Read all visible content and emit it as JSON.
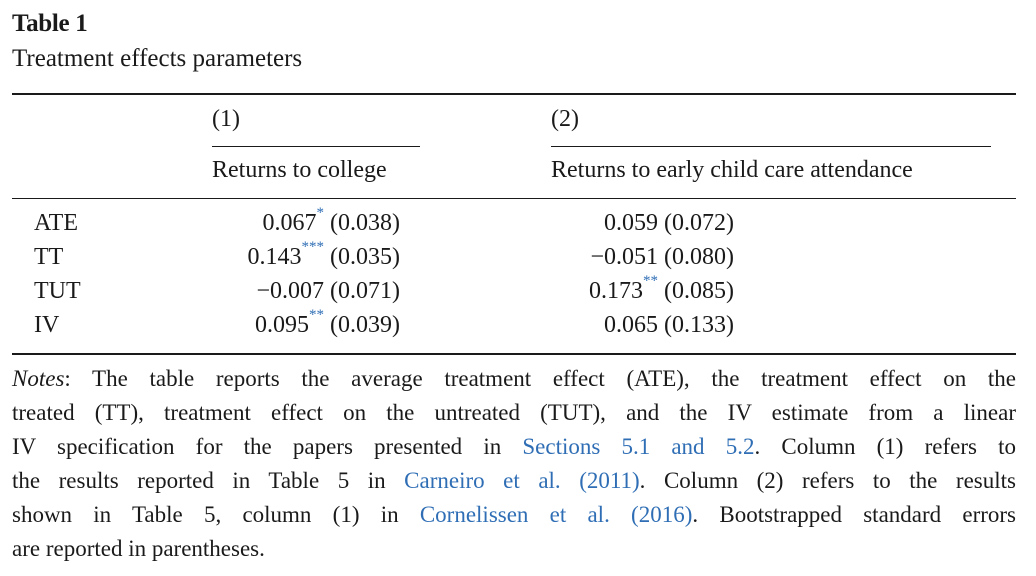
{
  "table": {
    "title": "Table 1",
    "subtitle": "Treatment effects parameters",
    "columns": [
      {
        "number": "(1)",
        "label": "Returns to college"
      },
      {
        "number": "(2)",
        "label": "Returns to early child care attendance"
      }
    ],
    "rows": [
      {
        "label": "ATE",
        "col1_value": "0.067",
        "col1_stars": "*",
        "col1_se": "(0.038)",
        "col2_value": "0.059",
        "col2_stars": "",
        "col2_se": "(0.072)"
      },
      {
        "label": "TT",
        "col1_value": "0.143",
        "col1_stars": "***",
        "col1_se": "(0.035)",
        "col2_value": "−0.051",
        "col2_stars": "",
        "col2_se": "(0.080)"
      },
      {
        "label": "TUT",
        "col1_value": "−0.007",
        "col1_stars": "",
        "col1_se": "(0.071)",
        "col2_value": "0.173",
        "col2_stars": "**",
        "col2_se": "(0.085)"
      },
      {
        "label": "IV",
        "col1_value": "0.095",
        "col1_stars": "**",
        "col1_se": "(0.039)",
        "col2_value": "0.065",
        "col2_stars": "",
        "col2_se": "(0.133)"
      }
    ]
  },
  "notes": {
    "label": "Notes",
    "l1": ": The table reports the average treatment effect (ATE), the treatment effect on the",
    "l2": "treated (TT), treatment effect on the untreated (TUT), and the IV estimate from a linear",
    "l3a": "IV specification for the papers presented in ",
    "l3_link": "Sections 5.1 and 5.2",
    "l3b": ". Column (1) refers to",
    "l4a": "the results reported in Table 5 in ",
    "l4_link": "Carneiro et al. (2011)",
    "l4b": ". Column (2) refers to the results",
    "l5a": "shown in Table 5, column (1) in ",
    "l5_link": "Cornelissen et al. (2016)",
    "l5b": ". Bootstrapped standard errors",
    "l6": "are reported in parentheses."
  }
}
